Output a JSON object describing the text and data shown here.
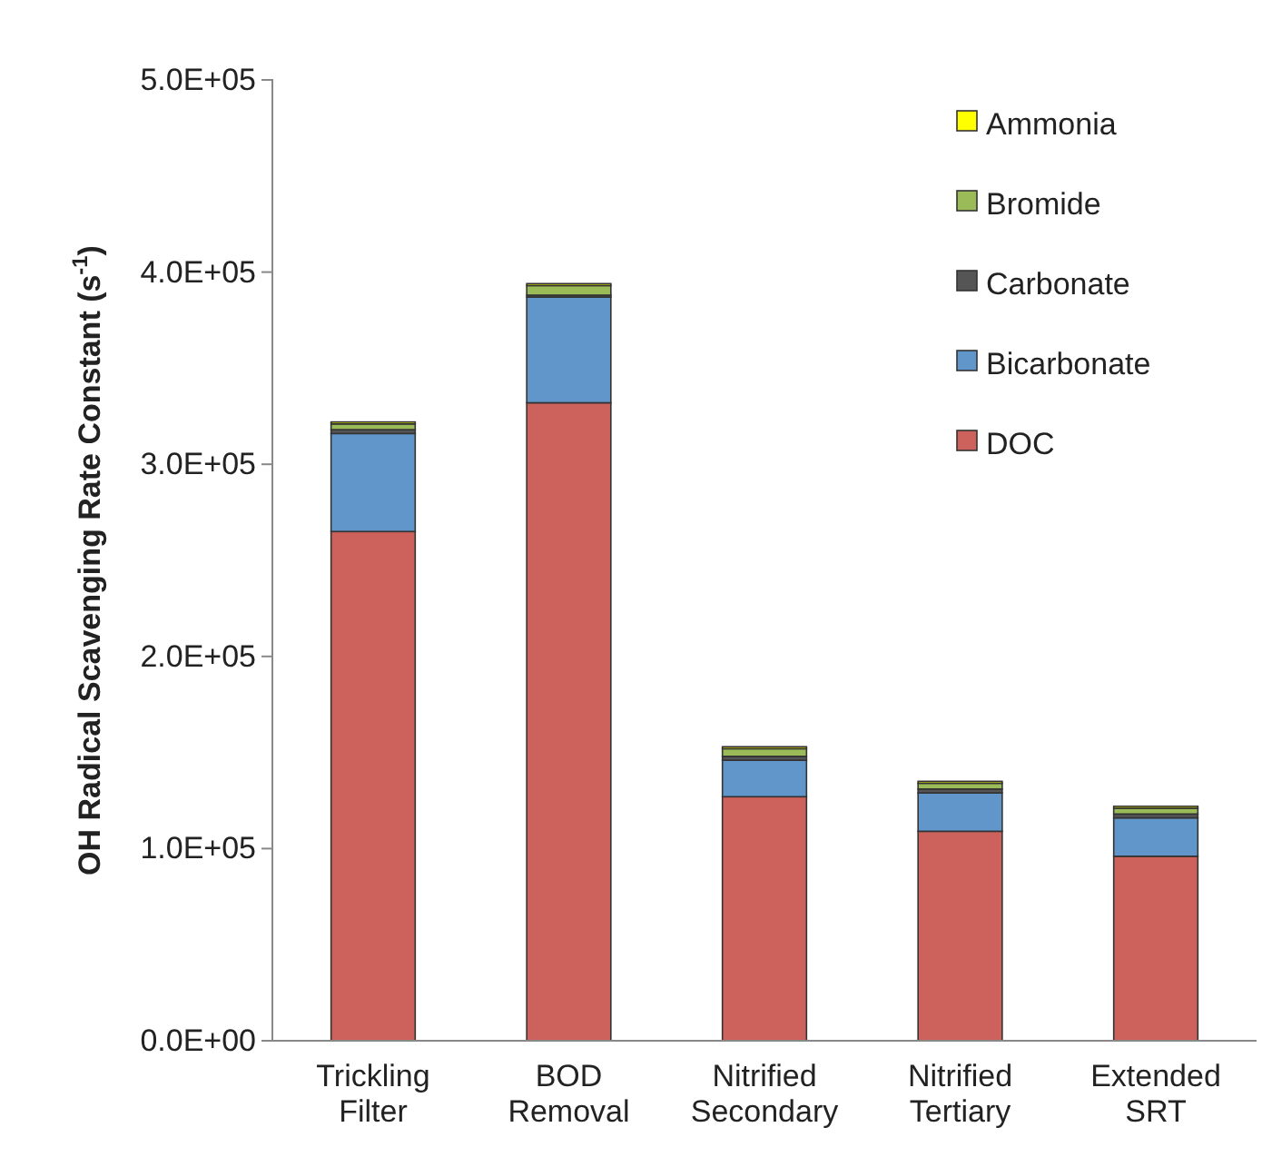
{
  "chart_data": {
    "type": "bar",
    "stacked": true,
    "ylabel": "OH Radical Scavenging Rate Constant (s$^{-1}$)",
    "categories": [
      "Trickling Filter",
      "BOD Removal",
      "Nitrified Secondary",
      "Nitrified Tertiary",
      "Extended SRT"
    ],
    "series": [
      {
        "name": "DOC",
        "color": "#cd625c",
        "values": [
          265000,
          332000,
          127000,
          109000,
          96000
        ]
      },
      {
        "name": "Bicarbonate",
        "color": "#6196cb",
        "values": [
          51000,
          55000,
          19000,
          20000,
          20000
        ]
      },
      {
        "name": "Carbonate",
        "color": "#555555",
        "values": [
          2000,
          1000,
          2000,
          2000,
          2000
        ]
      },
      {
        "name": "Bromide",
        "color": "#9bbb59",
        "values": [
          3000,
          5000,
          4000,
          3000,
          3000
        ]
      },
      {
        "name": "Ammonia",
        "color": "#ffff00",
        "values": [
          1000,
          1000,
          1000,
          1000,
          1000
        ]
      }
    ],
    "ylim": [
      0,
      500000
    ],
    "yticks": [
      {
        "value": 0,
        "label": "0.0E+00"
      },
      {
        "value": 100000,
        "label": "1.0E+05"
      },
      {
        "value": 200000,
        "label": "2.0E+05"
      },
      {
        "value": 300000,
        "label": "3.0E+05"
      },
      {
        "value": 400000,
        "label": "4.0E+05"
      },
      {
        "value": 500000,
        "label": "5.0E+05"
      }
    ],
    "legend": "top right"
  }
}
